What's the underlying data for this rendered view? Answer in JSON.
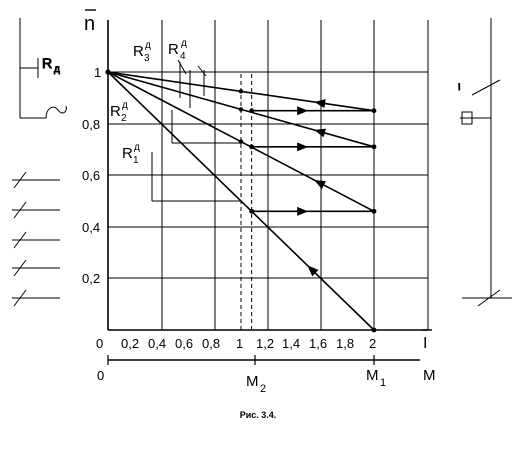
{
  "figure": {
    "caption": "Рис. 3.4."
  },
  "axes": {
    "y_label": "n",
    "x_label": "I",
    "torque_label": "M",
    "y_ticks": [
      "0,2",
      "0,4",
      "0,6",
      "0,8",
      "1"
    ],
    "x_ticks": [
      "0,2",
      "0,4",
      "0,6",
      "0,8",
      "1",
      "1,2",
      "1,4",
      "1,6",
      "1,8",
      "2"
    ],
    "x_origin": "0",
    "torque_origin": "0",
    "m1": "M",
    "m1_sub": "1",
    "m2": "M",
    "m2_sub": "2"
  },
  "resistors": [
    {
      "name": "R",
      "sub": "1",
      "sup": "д"
    },
    {
      "name": "R",
      "sub": "2",
      "sup": "д"
    },
    {
      "name": "R",
      "sub": "3",
      "sup": "д"
    },
    {
      "name": "R",
      "sub": "4",
      "sup": "д"
    }
  ],
  "circuit": {
    "resistor_label": "R",
    "resistor_label_sub": "д",
    "switch_label": "I"
  },
  "chart_data": {
    "type": "line",
    "xlim": [
      0,
      2.4
    ],
    "ylim": [
      0,
      1.0
    ],
    "origin": [
      0,
      1
    ],
    "lines": [
      {
        "resistor": "R1",
        "end": [
          2,
          0
        ]
      },
      {
        "resistor": "R2",
        "end": [
          2,
          0.46
        ]
      },
      {
        "resistor": "R3",
        "end": [
          2,
          0.71
        ]
      },
      {
        "resistor": "R4",
        "end": [
          2,
          0.85
        ]
      }
    ],
    "transitions": [
      {
        "y": 0.46,
        "from_x": 2,
        "to_x": 1.08
      },
      {
        "y": 0.71,
        "from_x": 2,
        "to_x": 1.08
      },
      {
        "y": 0.85,
        "from_x": 2,
        "to_x": 1.08
      }
    ],
    "switching_lines_x": [
      1.0,
      1.08
    ]
  }
}
